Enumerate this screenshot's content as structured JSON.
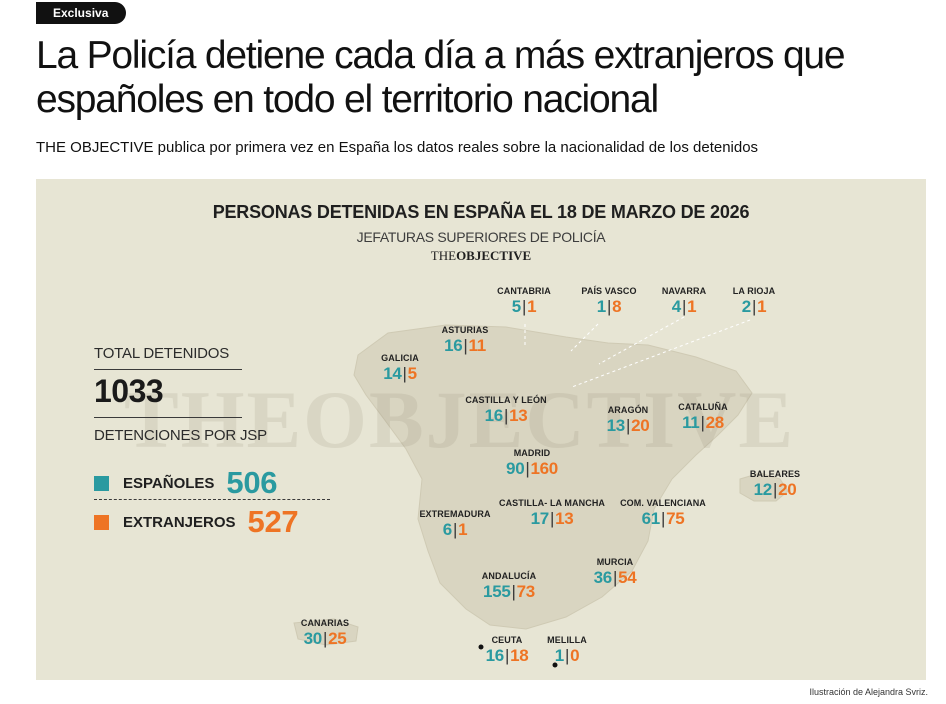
{
  "badge": "Exclusiva",
  "headline": "La Policía detiene cada día a más extranjeros que españoles en todo el territorio nacional",
  "subheadline": "THE OBJECTIVE publica por primera vez en España los datos reales sobre la nacionalidad de los detenidos",
  "figure": {
    "title": "PERSONAS DETENIDAS EN ESPAÑA EL 18 DE MARZO DE 2026",
    "subtitle": "JEFATURAS SUPERIORES DE POLICÍA",
    "brand_prefix": "THE",
    "brand_name": "OBJECTIVE",
    "watermark": "THEOBJECTIVE",
    "colors": {
      "espanoles": "#2a9aa0",
      "extranjeros": "#ee7424",
      "background": "#e7e5d4",
      "land": "#d8d4c0"
    },
    "summary": {
      "total_label": "TOTAL DETENIDOS",
      "total_value": "1033",
      "breakdown_label": "DETENCIONES POR JSP",
      "espanoles_label": "ESPAÑOLES",
      "espanoles_value": "506",
      "extranjeros_label": "EXTRANJEROS",
      "extranjeros_value": "527"
    },
    "separator": "|",
    "regions": [
      {
        "name": "CANTABRIA",
        "espanoles": "5",
        "extranjeros": "1"
      },
      {
        "name": "PAÍS VASCO",
        "espanoles": "1",
        "extranjeros": "8"
      },
      {
        "name": "NAVARRA",
        "espanoles": "4",
        "extranjeros": "1"
      },
      {
        "name": "LA RIOJA",
        "espanoles": "2",
        "extranjeros": "1"
      },
      {
        "name": "ASTURIAS",
        "espanoles": "16",
        "extranjeros": "11"
      },
      {
        "name": "GALICIA",
        "espanoles": "14",
        "extranjeros": "5"
      },
      {
        "name": "CASTILLA Y LEÓN",
        "espanoles": "16",
        "extranjeros": "13"
      },
      {
        "name": "ARAGÓN",
        "espanoles": "13",
        "extranjeros": "20"
      },
      {
        "name": "CATALUÑA",
        "espanoles": "11",
        "extranjeros": "28"
      },
      {
        "name": "MADRID",
        "espanoles": "90",
        "extranjeros": "160"
      },
      {
        "name": "BALEARES",
        "espanoles": "12",
        "extranjeros": "20"
      },
      {
        "name": "EXTREMADURA",
        "espanoles": "6",
        "extranjeros": "1"
      },
      {
        "name": "CASTILLA- LA MANCHA",
        "espanoles": "17",
        "extranjeros": "13"
      },
      {
        "name": "COM. VALENCIANA",
        "espanoles": "61",
        "extranjeros": "75"
      },
      {
        "name": "MURCIA",
        "espanoles": "36",
        "extranjeros": "54"
      },
      {
        "name": "ANDALUCÍA",
        "espanoles": "155",
        "extranjeros": "73"
      },
      {
        "name": "CANARIAS",
        "espanoles": "30",
        "extranjeros": "25"
      },
      {
        "name": "CEUTA",
        "espanoles": "16",
        "extranjeros": "18"
      },
      {
        "name": "MELILLA",
        "espanoles": "1",
        "extranjeros": "0"
      }
    ]
  },
  "credit": "Ilustración de Alejandra Svriz."
}
